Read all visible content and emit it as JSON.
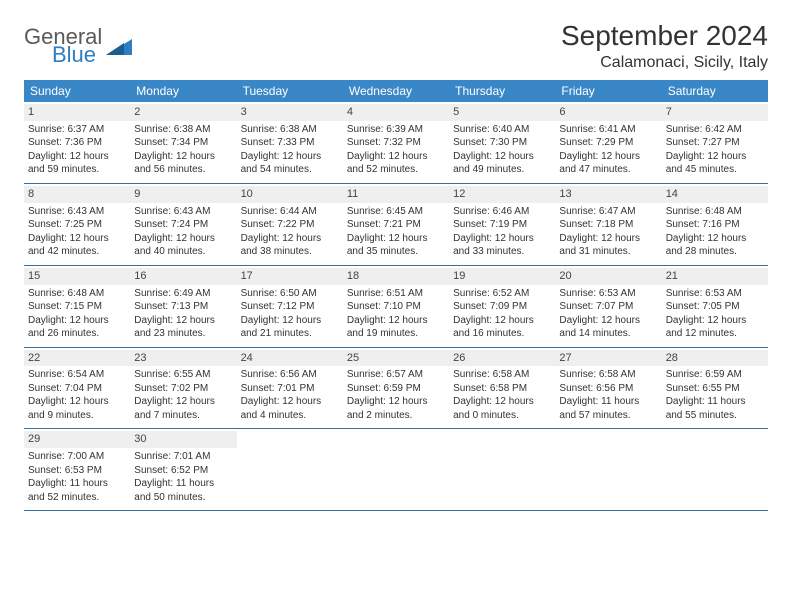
{
  "logo": {
    "word1": "General",
    "word2": "Blue"
  },
  "title": "September 2024",
  "location": "Calamonaci, Sicily, Italy",
  "colors": {
    "header_bg": "#3a87c8",
    "header_text": "#ffffff",
    "daynum_bg": "#efefef",
    "border": "#3a6f9c",
    "logo_gray": "#5a5a5a",
    "logo_blue": "#2f7ec2"
  },
  "dayHeaders": [
    "Sunday",
    "Monday",
    "Tuesday",
    "Wednesday",
    "Thursday",
    "Friday",
    "Saturday"
  ],
  "weeks": [
    [
      {
        "n": "1",
        "sr": "Sunrise: 6:37 AM",
        "ss": "Sunset: 7:36 PM",
        "d1": "Daylight: 12 hours",
        "d2": "and 59 minutes."
      },
      {
        "n": "2",
        "sr": "Sunrise: 6:38 AM",
        "ss": "Sunset: 7:34 PM",
        "d1": "Daylight: 12 hours",
        "d2": "and 56 minutes."
      },
      {
        "n": "3",
        "sr": "Sunrise: 6:38 AM",
        "ss": "Sunset: 7:33 PM",
        "d1": "Daylight: 12 hours",
        "d2": "and 54 minutes."
      },
      {
        "n": "4",
        "sr": "Sunrise: 6:39 AM",
        "ss": "Sunset: 7:32 PM",
        "d1": "Daylight: 12 hours",
        "d2": "and 52 minutes."
      },
      {
        "n": "5",
        "sr": "Sunrise: 6:40 AM",
        "ss": "Sunset: 7:30 PM",
        "d1": "Daylight: 12 hours",
        "d2": "and 49 minutes."
      },
      {
        "n": "6",
        "sr": "Sunrise: 6:41 AM",
        "ss": "Sunset: 7:29 PM",
        "d1": "Daylight: 12 hours",
        "d2": "and 47 minutes."
      },
      {
        "n": "7",
        "sr": "Sunrise: 6:42 AM",
        "ss": "Sunset: 7:27 PM",
        "d1": "Daylight: 12 hours",
        "d2": "and 45 minutes."
      }
    ],
    [
      {
        "n": "8",
        "sr": "Sunrise: 6:43 AM",
        "ss": "Sunset: 7:25 PM",
        "d1": "Daylight: 12 hours",
        "d2": "and 42 minutes."
      },
      {
        "n": "9",
        "sr": "Sunrise: 6:43 AM",
        "ss": "Sunset: 7:24 PM",
        "d1": "Daylight: 12 hours",
        "d2": "and 40 minutes."
      },
      {
        "n": "10",
        "sr": "Sunrise: 6:44 AM",
        "ss": "Sunset: 7:22 PM",
        "d1": "Daylight: 12 hours",
        "d2": "and 38 minutes."
      },
      {
        "n": "11",
        "sr": "Sunrise: 6:45 AM",
        "ss": "Sunset: 7:21 PM",
        "d1": "Daylight: 12 hours",
        "d2": "and 35 minutes."
      },
      {
        "n": "12",
        "sr": "Sunrise: 6:46 AM",
        "ss": "Sunset: 7:19 PM",
        "d1": "Daylight: 12 hours",
        "d2": "and 33 minutes."
      },
      {
        "n": "13",
        "sr": "Sunrise: 6:47 AM",
        "ss": "Sunset: 7:18 PM",
        "d1": "Daylight: 12 hours",
        "d2": "and 31 minutes."
      },
      {
        "n": "14",
        "sr": "Sunrise: 6:48 AM",
        "ss": "Sunset: 7:16 PM",
        "d1": "Daylight: 12 hours",
        "d2": "and 28 minutes."
      }
    ],
    [
      {
        "n": "15",
        "sr": "Sunrise: 6:48 AM",
        "ss": "Sunset: 7:15 PM",
        "d1": "Daylight: 12 hours",
        "d2": "and 26 minutes."
      },
      {
        "n": "16",
        "sr": "Sunrise: 6:49 AM",
        "ss": "Sunset: 7:13 PM",
        "d1": "Daylight: 12 hours",
        "d2": "and 23 minutes."
      },
      {
        "n": "17",
        "sr": "Sunrise: 6:50 AM",
        "ss": "Sunset: 7:12 PM",
        "d1": "Daylight: 12 hours",
        "d2": "and 21 minutes."
      },
      {
        "n": "18",
        "sr": "Sunrise: 6:51 AM",
        "ss": "Sunset: 7:10 PM",
        "d1": "Daylight: 12 hours",
        "d2": "and 19 minutes."
      },
      {
        "n": "19",
        "sr": "Sunrise: 6:52 AM",
        "ss": "Sunset: 7:09 PM",
        "d1": "Daylight: 12 hours",
        "d2": "and 16 minutes."
      },
      {
        "n": "20",
        "sr": "Sunrise: 6:53 AM",
        "ss": "Sunset: 7:07 PM",
        "d1": "Daylight: 12 hours",
        "d2": "and 14 minutes."
      },
      {
        "n": "21",
        "sr": "Sunrise: 6:53 AM",
        "ss": "Sunset: 7:05 PM",
        "d1": "Daylight: 12 hours",
        "d2": "and 12 minutes."
      }
    ],
    [
      {
        "n": "22",
        "sr": "Sunrise: 6:54 AM",
        "ss": "Sunset: 7:04 PM",
        "d1": "Daylight: 12 hours",
        "d2": "and 9 minutes."
      },
      {
        "n": "23",
        "sr": "Sunrise: 6:55 AM",
        "ss": "Sunset: 7:02 PM",
        "d1": "Daylight: 12 hours",
        "d2": "and 7 minutes."
      },
      {
        "n": "24",
        "sr": "Sunrise: 6:56 AM",
        "ss": "Sunset: 7:01 PM",
        "d1": "Daylight: 12 hours",
        "d2": "and 4 minutes."
      },
      {
        "n": "25",
        "sr": "Sunrise: 6:57 AM",
        "ss": "Sunset: 6:59 PM",
        "d1": "Daylight: 12 hours",
        "d2": "and 2 minutes."
      },
      {
        "n": "26",
        "sr": "Sunrise: 6:58 AM",
        "ss": "Sunset: 6:58 PM",
        "d1": "Daylight: 12 hours",
        "d2": "and 0 minutes."
      },
      {
        "n": "27",
        "sr": "Sunrise: 6:58 AM",
        "ss": "Sunset: 6:56 PM",
        "d1": "Daylight: 11 hours",
        "d2": "and 57 minutes."
      },
      {
        "n": "28",
        "sr": "Sunrise: 6:59 AM",
        "ss": "Sunset: 6:55 PM",
        "d1": "Daylight: 11 hours",
        "d2": "and 55 minutes."
      }
    ],
    [
      {
        "n": "29",
        "sr": "Sunrise: 7:00 AM",
        "ss": "Sunset: 6:53 PM",
        "d1": "Daylight: 11 hours",
        "d2": "and 52 minutes."
      },
      {
        "n": "30",
        "sr": "Sunrise: 7:01 AM",
        "ss": "Sunset: 6:52 PM",
        "d1": "Daylight: 11 hours",
        "d2": "and 50 minutes."
      },
      {
        "empty": true
      },
      {
        "empty": true
      },
      {
        "empty": true
      },
      {
        "empty": true
      },
      {
        "empty": true
      }
    ]
  ]
}
